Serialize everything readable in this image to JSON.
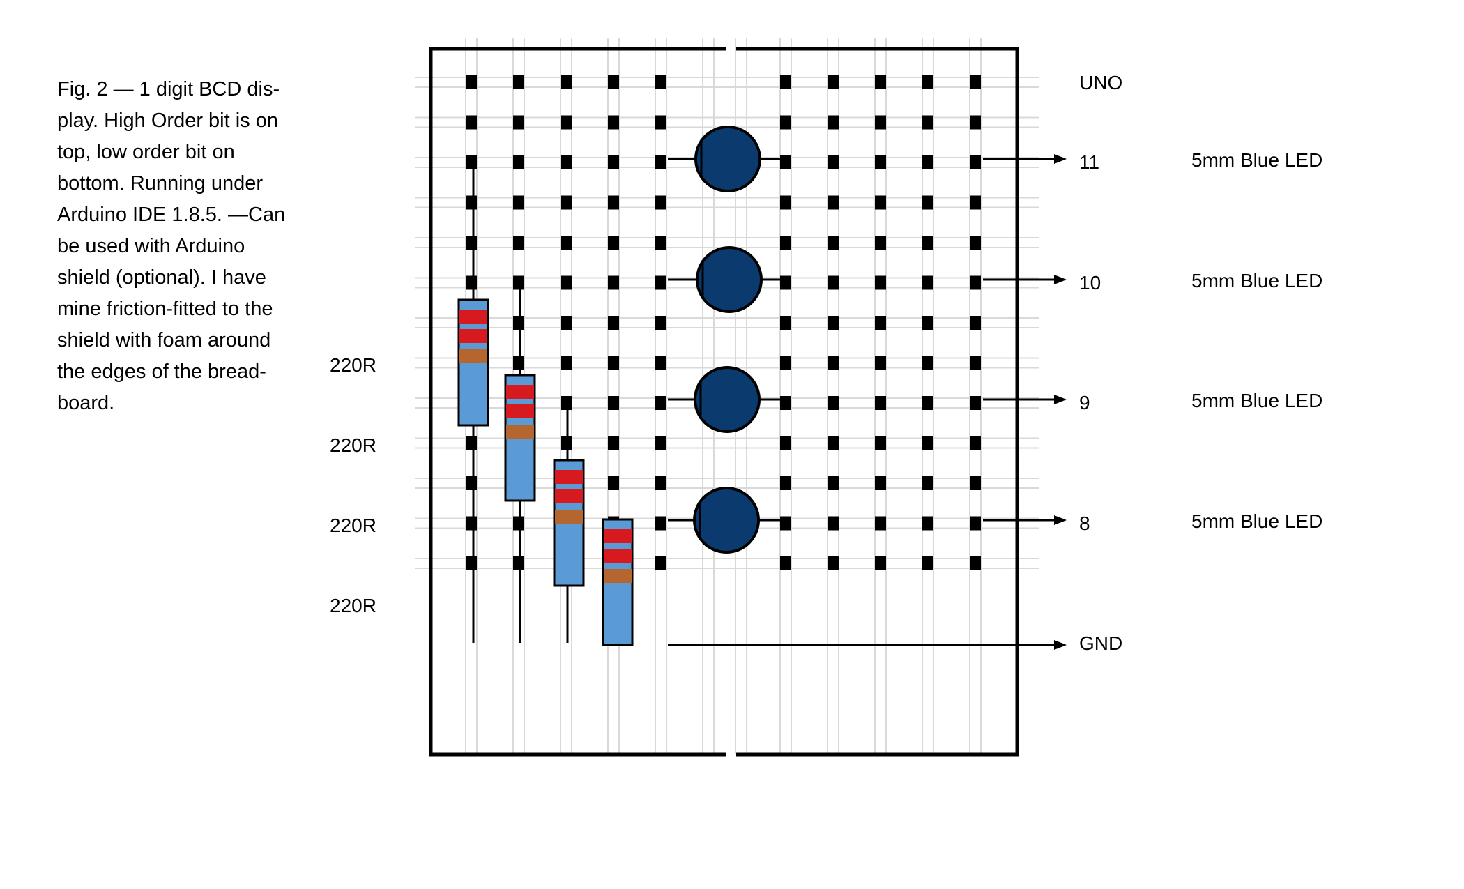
{
  "caption": {
    "lines": [
      "Fig. 2 — 1 digit BCD dis-",
      "play. High Order bit is on",
      "top, low order bit on",
      "bottom. Running under",
      "Arduino IDE 1.8.5. —Can",
      "be used with Arduino",
      "shield (optional). I have",
      "mine friction-fitted to the",
      "shield with foam around",
      "the edges of the bread-",
      "board."
    ]
  },
  "resistors": [
    {
      "label": "220R"
    },
    {
      "label": "220R"
    },
    {
      "label": "220R"
    },
    {
      "label": "220R"
    }
  ],
  "board_header": "UNO",
  "connections": [
    {
      "pin": "11",
      "led": "5mm Blue LED"
    },
    {
      "pin": "10",
      "led": "5mm Blue LED"
    },
    {
      "pin": "9",
      "led": "5mm Blue LED"
    },
    {
      "pin": "8",
      "led": "5mm Blue LED"
    },
    {
      "pin": "GND",
      "led": ""
    }
  ],
  "colors": {
    "led_fill": "#0b3a6e",
    "resistor_body": "#5b9bd5",
    "band_red": "#d71920",
    "band_brown": "#b5652e",
    "grid": "#d9d9d9"
  }
}
